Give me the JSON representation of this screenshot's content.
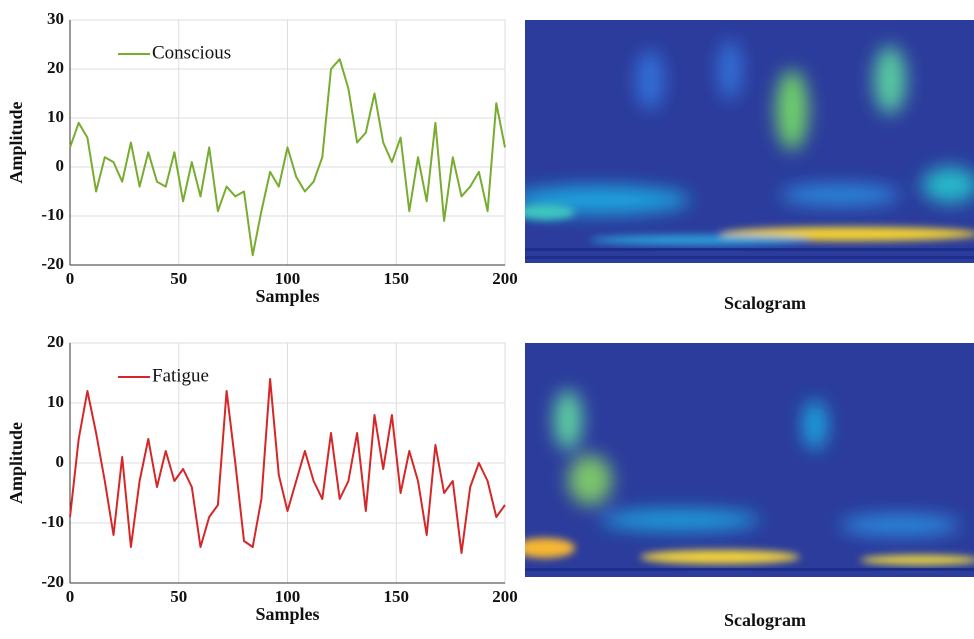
{
  "chart_data": [
    {
      "type": "line",
      "xlabel": "Samples",
      "ylabel": "Amplitude",
      "legend": "upper left",
      "grid": true,
      "xlim": [
        0,
        200
      ],
      "xticks": [
        0,
        50,
        100,
        150,
        200
      ],
      "ylim": [
        -20,
        30
      ],
      "yticks": [
        -20,
        -10,
        0,
        10,
        20,
        30
      ],
      "x": [
        0,
        4,
        8,
        12,
        16,
        20,
        24,
        28,
        32,
        36,
        40,
        44,
        48,
        52,
        56,
        60,
        64,
        68,
        72,
        76,
        80,
        84,
        88,
        92,
        96,
        100,
        104,
        108,
        112,
        116,
        120,
        124,
        128,
        132,
        136,
        140,
        144,
        148,
        152,
        156,
        160,
        164,
        168,
        172,
        176,
        180,
        184,
        188,
        192,
        196,
        200
      ],
      "series": [
        {
          "name": "Conscious",
          "color": "#77ac30",
          "values": [
            4,
            9,
            6,
            -5,
            2,
            1,
            -3,
            5,
            -4,
            3,
            -3,
            -4,
            3,
            -7,
            1,
            -6,
            4,
            -9,
            -4,
            -6,
            -5,
            -18,
            -9,
            -1,
            -4,
            4,
            -2,
            -5,
            -3,
            2,
            20,
            22,
            16,
            5,
            7,
            15,
            5,
            1,
            6,
            -9,
            2,
            -7,
            9,
            -11,
            2,
            -6,
            -4,
            -1,
            -9,
            13,
            4
          ]
        }
      ]
    },
    {
      "type": "line",
      "xlabel": "Samples",
      "ylabel": "Amplitude",
      "legend": "upper left",
      "grid": true,
      "xlim": [
        0,
        200
      ],
      "xticks": [
        0,
        50,
        100,
        150,
        200
      ],
      "ylim": [
        -20,
        20
      ],
      "yticks": [
        -20,
        -10,
        0,
        10,
        20
      ],
      "x": [
        0,
        4,
        8,
        12,
        16,
        20,
        24,
        28,
        32,
        36,
        40,
        44,
        48,
        52,
        56,
        60,
        64,
        68,
        72,
        76,
        80,
        84,
        88,
        92,
        96,
        100,
        104,
        108,
        112,
        116,
        120,
        124,
        128,
        132,
        136,
        140,
        144,
        148,
        152,
        156,
        160,
        164,
        168,
        172,
        176,
        180,
        184,
        188,
        192,
        196,
        200
      ],
      "series": [
        {
          "name": "Fatigue",
          "color": "#d62728",
          "values": [
            -9,
            4,
            12,
            5,
            -3,
            -12,
            1,
            -14,
            -3,
            4,
            -4,
            2,
            -3,
            -1,
            -4,
            -14,
            -9,
            -7,
            12,
            0,
            -13,
            -14,
            -6,
            14,
            -2,
            -8,
            -3,
            2,
            -3,
            -6,
            5,
            -6,
            -3,
            5,
            -8,
            8,
            -1,
            8,
            -5,
            2,
            -3,
            -12,
            3,
            -5,
            -3,
            -15,
            -4,
            0,
            -3,
            -9,
            -7
          ]
        }
      ]
    }
  ],
  "scalograms": [
    {
      "caption": "Scalogram"
    },
    {
      "caption": "Scalogram"
    }
  ]
}
